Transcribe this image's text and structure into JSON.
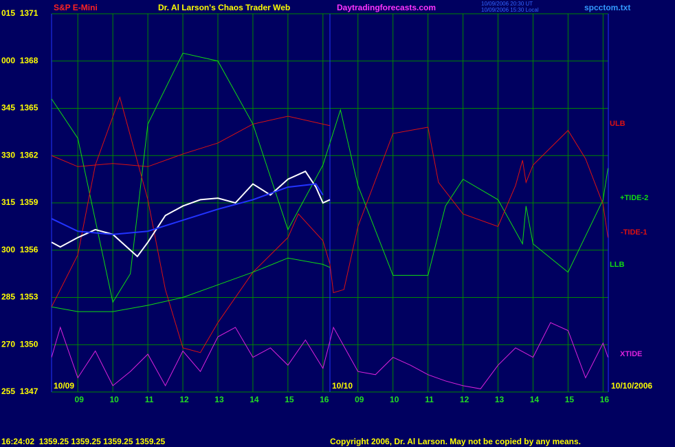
{
  "chart_data": {
    "type": "line",
    "title": "Dr. Al Larson's Chaos Trader Web",
    "subtitle": "S&P E-Mini",
    "site": "Daytradingforecasts.com",
    "file": "spcctom.txt",
    "timestamp_lines": [
      "10/09/2006 20:30 UT",
      "10/09/2006 15:30 Local"
    ],
    "date_labels": [
      "10/09",
      "10/10",
      "10/10/2006"
    ],
    "status_line": "16:24:02  1359.25 1359.25 1359.25 1359.25",
    "copyright": "Copyright 2006, Dr. Al Larson. May not be copied by any means.",
    "grid": true,
    "xlim": [
      -0.75,
      15.15
    ],
    "xticks": [
      {
        "value": 0,
        "label": "09"
      },
      {
        "value": 1,
        "label": "10"
      },
      {
        "value": 2,
        "label": "11"
      },
      {
        "value": 3,
        "label": "12"
      },
      {
        "value": 4,
        "label": "13"
      },
      {
        "value": 5,
        "label": "14"
      },
      {
        "value": 6,
        "label": "15"
      },
      {
        "value": 7,
        "label": "16"
      },
      {
        "value": 8,
        "label": "09"
      },
      {
        "value": 9,
        "label": "10"
      },
      {
        "value": 10,
        "label": "11"
      },
      {
        "value": 11,
        "label": "12"
      },
      {
        "value": 12,
        "label": "13"
      },
      {
        "value": 13,
        "label": "14"
      },
      {
        "value": 14,
        "label": "15"
      },
      {
        "value": 15,
        "label": "16"
      }
    ],
    "day_separator": 7.2,
    "ylim": [
      1347,
      1371
    ],
    "yticks": [
      {
        "value": 1347,
        "label": "255  1347"
      },
      {
        "value": 1350,
        "label": "270  1350"
      },
      {
        "value": 1353,
        "label": "285  1353"
      },
      {
        "value": 1356,
        "label": "300  1356"
      },
      {
        "value": 1359,
        "label": "315  1359"
      },
      {
        "value": 1362,
        "label": "330  1362"
      },
      {
        "value": 1365,
        "label": "345  1365"
      },
      {
        "value": 1368,
        "label": "000  1368"
      },
      {
        "value": 1371,
        "label": "015  1371"
      }
    ],
    "series": [
      {
        "name": "ULB",
        "color": "#dd1111",
        "x": [
          -0.75,
          0,
          1,
          2,
          3,
          4,
          5,
          6,
          7.2
        ],
        "values": [
          1362.0,
          1361.3,
          1361.5,
          1361.3,
          1362.1,
          1362.8,
          1364.0,
          1364.5,
          1363.9
        ]
      },
      {
        "name": "+TIDE-2",
        "color": "#11dd11",
        "x": [
          -0.75,
          0,
          1,
          1.5,
          2,
          3,
          4,
          5,
          6,
          7,
          7.5,
          8,
          9,
          10,
          10.5,
          11,
          12,
          12.7,
          12.8,
          13,
          14,
          15,
          15.14
        ],
        "values": [
          1365.6,
          1363.1,
          1352.7,
          1354.5,
          1364.0,
          1368.5,
          1368.0,
          1364.0,
          1357.3,
          1361.4,
          1364.9,
          1360.1,
          1354.4,
          1354.4,
          1358.8,
          1360.5,
          1359.2,
          1356.4,
          1358.8,
          1356.4,
          1354.6,
          1359.2,
          1361.2
        ]
      },
      {
        "name": "-TIDE-1",
        "color": "#dd1111",
        "x": [
          -0.75,
          0,
          0.5,
          1.2,
          2,
          2.5,
          3,
          3.5,
          4,
          5,
          6,
          6.3,
          7,
          7.2,
          7.3,
          7.6,
          8,
          9,
          10,
          10.3,
          11,
          12,
          12.5,
          12.7,
          12.8,
          13,
          14,
          14.5,
          15,
          15.14
        ],
        "values": [
          1352.4,
          1355.7,
          1361.4,
          1365.7,
          1359.2,
          1353.5,
          1349.8,
          1349.5,
          1351.4,
          1354.6,
          1356.8,
          1358.3,
          1356.6,
          1355.1,
          1353.3,
          1353.5,
          1357.5,
          1363.4,
          1363.8,
          1360.3,
          1358.3,
          1357.5,
          1360.1,
          1361.7,
          1360.3,
          1361.4,
          1363.6,
          1361.8,
          1358.9,
          1356.8
        ]
      },
      {
        "name": "LLB",
        "color": "#11dd11",
        "x": [
          -0.75,
          0,
          1,
          2,
          3,
          4,
          5,
          6,
          7,
          7.2
        ],
        "values": [
          1352.4,
          1352.1,
          1352.1,
          1352.5,
          1353.0,
          1353.8,
          1354.6,
          1355.5,
          1355.1,
          1354.9
        ]
      },
      {
        "name": "XTIDE",
        "color": "#dd22dd",
        "x": [
          -0.75,
          -0.5,
          0,
          0.5,
          1,
          1.5,
          2,
          2.5,
          3,
          3.5,
          4,
          4.5,
          5,
          5.5,
          6,
          6.5,
          7,
          7.3,
          8,
          8.5,
          9,
          9.5,
          10,
          10.5,
          11,
          11.5,
          12,
          12.5,
          13,
          13.5,
          14,
          14.5,
          15,
          15.14
        ],
        "values": [
          1349.2,
          1351.1,
          1347.9,
          1349.6,
          1347.4,
          1348.3,
          1349.4,
          1347.4,
          1349.6,
          1348.3,
          1350.5,
          1351.1,
          1349.2,
          1349.8,
          1348.7,
          1350.3,
          1348.5,
          1351.1,
          1348.3,
          1348.1,
          1349.2,
          1348.7,
          1348.1,
          1347.7,
          1347.4,
          1347.2,
          1348.7,
          1349.8,
          1349.2,
          1351.4,
          1350.9,
          1347.9,
          1350.1,
          1349.2
        ]
      },
      {
        "color": "#ffffff",
        "x": [
          -0.75,
          -0.5,
          0,
          0.5,
          1,
          1.5,
          1.7,
          2,
          2.5,
          3,
          3.5,
          4,
          4.5,
          5,
          5.5,
          6,
          6.5,
          6.8,
          7,
          7.2
        ],
        "values": [
          1356.5,
          1356.2,
          1356.8,
          1357.3,
          1357.0,
          1356.0,
          1355.6,
          1356.5,
          1358.2,
          1358.8,
          1359.2,
          1359.3,
          1359.0,
          1360.2,
          1359.5,
          1360.5,
          1361.0,
          1360.0,
          1359.0,
          1359.2
        ]
      },
      {
        "color": "#2233ff",
        "x": [
          -0.75,
          0,
          1,
          2,
          3,
          4,
          5,
          6,
          6.8,
          7
        ],
        "values": [
          1358.0,
          1357.2,
          1357.0,
          1357.2,
          1357.9,
          1358.6,
          1359.2,
          1360.0,
          1360.2,
          1359.5
        ]
      }
    ]
  }
}
